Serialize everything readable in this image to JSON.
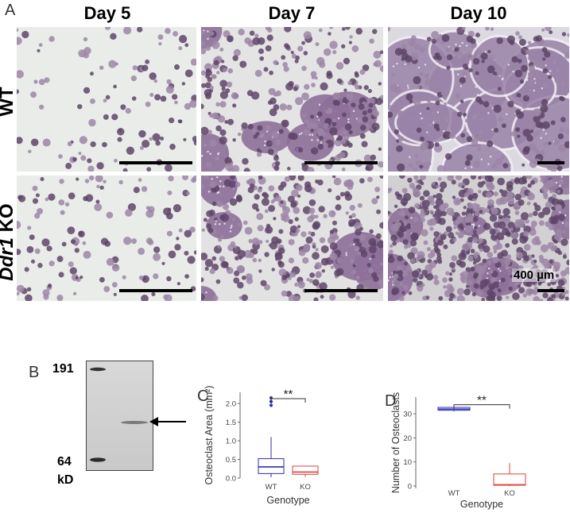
{
  "figure": {
    "panel_a_letter": "A",
    "panel_b_letter": "B",
    "panel_c_letter": "C",
    "panel_d_letter": "D",
    "day_headers": [
      "Day 5",
      "Day 7",
      "Day 10"
    ],
    "row_labels": {
      "wt": "WT",
      "ko_italic": "Ddr1",
      "ko_rest": " KO"
    },
    "scale_label": "400 µm",
    "colors": {
      "bg": "#ffffff",
      "panel_bg": "#e8ebe6",
      "stain": "#6b4a78",
      "wt_box": "#2b2fb0",
      "ko_box": "#e0403a"
    }
  },
  "blot": {
    "marker_top": "191",
    "marker_bottom": "64",
    "unit": "kD"
  },
  "chart_data": [
    {
      "type": "box",
      "panel": "C",
      "xlabel": "Genotype",
      "ylabel": "Osteoclast Area (mm²)",
      "categories": [
        "WT",
        "KO"
      ],
      "ylim": [
        0,
        2.3
      ],
      "yticks": [
        "0.0",
        "0.5",
        "1.0",
        "1.5",
        "2.0"
      ],
      "boxes": [
        {
          "name": "WT",
          "q1": 0.12,
          "median": 0.3,
          "q3": 0.52,
          "whisker_low": 0.02,
          "whisker_high": 1.1,
          "outliers": [
            1.95,
            2.05,
            2.15
          ],
          "color": "#2b2fb0"
        },
        {
          "name": "KO",
          "q1": 0.1,
          "median": 0.16,
          "q3": 0.32,
          "whisker_low": 0.03,
          "whisker_high": 0.32,
          "outliers": [],
          "color": "#e0403a"
        }
      ],
      "significance": "**"
    },
    {
      "type": "box",
      "panel": "D",
      "xlabel": "Genotype",
      "ylabel": "Number of Osteoclasts",
      "categories": [
        "WT",
        "KO"
      ],
      "ylim": [
        -1,
        37
      ],
      "yticks": [
        "0",
        "10",
        "20",
        "30"
      ],
      "boxes": [
        {
          "name": "WT",
          "q1": 31.5,
          "median": 32,
          "q3": 32.7,
          "whisker_low": 31,
          "whisker_high": 33,
          "outliers": [],
          "color": "#2b2fb0"
        },
        {
          "name": "KO",
          "q1": 0.3,
          "median": 0.5,
          "q3": 5,
          "whisker_low": 0,
          "whisker_high": 9.5,
          "outliers": [],
          "color": "#e0403a"
        }
      ],
      "significance": "**"
    }
  ]
}
